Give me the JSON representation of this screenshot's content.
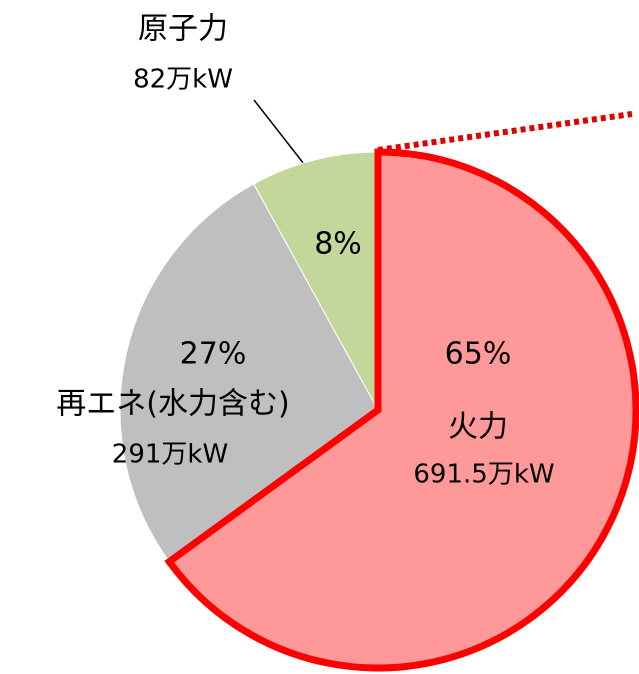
{
  "chart_data": {
    "type": "pie",
    "categories": [
      "火力",
      "再エネ(水力含む)",
      "原子力"
    ],
    "values": [
      65,
      27,
      8
    ],
    "value_labels": [
      "65%",
      "27%",
      "8%"
    ],
    "sublabels": [
      "691.5万kW",
      "291万kW",
      "82万kW"
    ],
    "colors": [
      "#ff9999",
      "#bfbfbf",
      "#c4d79b"
    ]
  }
}
